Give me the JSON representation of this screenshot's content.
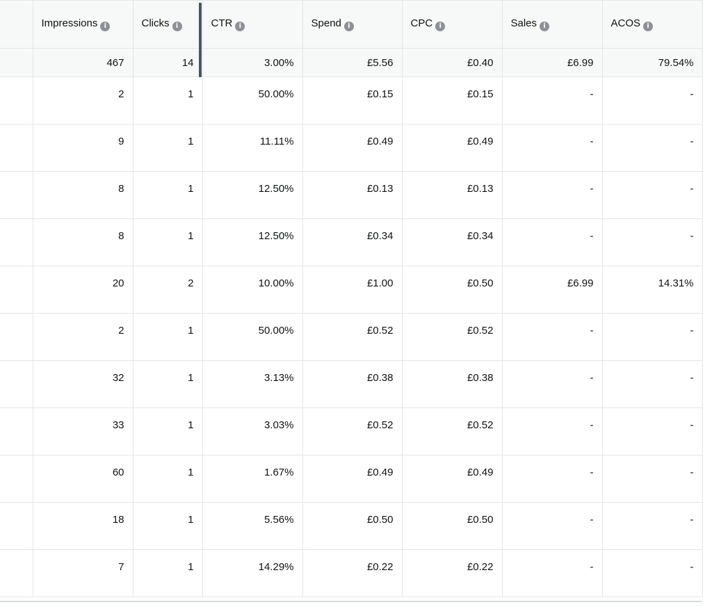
{
  "columns": [
    {
      "key": "blank",
      "label": ""
    },
    {
      "key": "impressions",
      "label": "Impressions"
    },
    {
      "key": "clicks",
      "label": "Clicks"
    },
    {
      "key": "ctr",
      "label": "CTR"
    },
    {
      "key": "spend",
      "label": "Spend"
    },
    {
      "key": "cpc",
      "label": "CPC"
    },
    {
      "key": "sales",
      "label": "Sales"
    },
    {
      "key": "acos",
      "label": "ACOS"
    }
  ],
  "info_icon_glyph": "i",
  "totals": {
    "blank": "",
    "impressions": "467",
    "clicks": "14",
    "ctr": "3.00%",
    "spend": "£5.56",
    "cpc": "£0.40",
    "sales": "£6.99",
    "acos": "79.54%"
  },
  "rows": [
    {
      "blank": "",
      "impressions": "2",
      "clicks": "1",
      "ctr": "50.00%",
      "spend": "£0.15",
      "cpc": "£0.15",
      "sales": "-",
      "acos": "-"
    },
    {
      "blank": "",
      "impressions": "9",
      "clicks": "1",
      "ctr": "11.11%",
      "spend": "£0.49",
      "cpc": "£0.49",
      "sales": "-",
      "acos": "-"
    },
    {
      "blank": "",
      "impressions": "8",
      "clicks": "1",
      "ctr": "12.50%",
      "spend": "£0.13",
      "cpc": "£0.13",
      "sales": "-",
      "acos": "-"
    },
    {
      "blank": "",
      "impressions": "8",
      "clicks": "1",
      "ctr": "12.50%",
      "spend": "£0.34",
      "cpc": "£0.34",
      "sales": "-",
      "acos": "-"
    },
    {
      "blank": "",
      "impressions": "20",
      "clicks": "2",
      "ctr": "10.00%",
      "spend": "£1.00",
      "cpc": "£0.50",
      "sales": "£6.99",
      "acos": "14.31%"
    },
    {
      "blank": "",
      "impressions": "2",
      "clicks": "1",
      "ctr": "50.00%",
      "spend": "£0.52",
      "cpc": "£0.52",
      "sales": "-",
      "acos": "-"
    },
    {
      "blank": "",
      "impressions": "32",
      "clicks": "1",
      "ctr": "3.13%",
      "spend": "£0.38",
      "cpc": "£0.38",
      "sales": "-",
      "acos": "-"
    },
    {
      "blank": "",
      "impressions": "33",
      "clicks": "1",
      "ctr": "3.03%",
      "spend": "£0.52",
      "cpc": "£0.52",
      "sales": "-",
      "acos": "-"
    },
    {
      "blank": "",
      "impressions": "60",
      "clicks": "1",
      "ctr": "1.67%",
      "spend": "£0.49",
      "cpc": "£0.49",
      "sales": "-",
      "acos": "-"
    },
    {
      "blank": "",
      "impressions": "18",
      "clicks": "1",
      "ctr": "5.56%",
      "spend": "£0.50",
      "cpc": "£0.50",
      "sales": "-",
      "acos": "-"
    },
    {
      "blank": "",
      "impressions": "7",
      "clicks": "1",
      "ctr": "14.29%",
      "spend": "£0.22",
      "cpc": "£0.22",
      "sales": "-",
      "acos": "-"
    }
  ]
}
